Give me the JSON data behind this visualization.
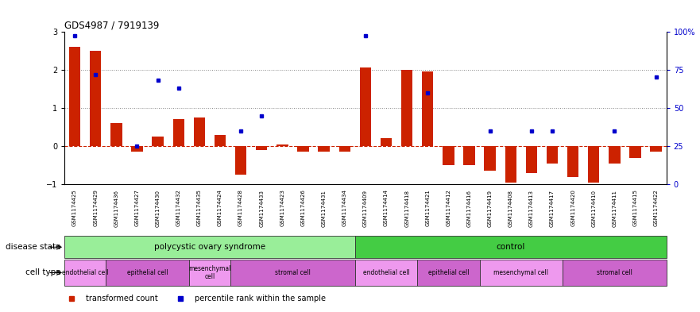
{
  "title": "GDS4987 / 7919139",
  "samples": [
    "GSM1174425",
    "GSM1174429",
    "GSM1174436",
    "GSM1174427",
    "GSM1174430",
    "GSM1174432",
    "GSM1174435",
    "GSM1174424",
    "GSM1174428",
    "GSM1174433",
    "GSM1174423",
    "GSM1174426",
    "GSM1174431",
    "GSM1174434",
    "GSM1174409",
    "GSM1174414",
    "GSM1174418",
    "GSM1174421",
    "GSM1174412",
    "GSM1174416",
    "GSM1174419",
    "GSM1174408",
    "GSM1174413",
    "GSM1174417",
    "GSM1174420",
    "GSM1174410",
    "GSM1174411",
    "GSM1174415",
    "GSM1174422"
  ],
  "transformed_count": [
    2.6,
    2.5,
    0.6,
    -0.15,
    0.25,
    0.7,
    0.75,
    0.3,
    -0.75,
    -0.1,
    0.05,
    -0.15,
    -0.15,
    -0.15,
    2.05,
    0.2,
    2.0,
    1.95,
    -0.5,
    -0.5,
    -0.65,
    -0.95,
    -0.7,
    -0.45,
    -0.8,
    -0.95,
    -0.45,
    -0.3,
    -0.15
  ],
  "percentile_rank": [
    97,
    72,
    null,
    25,
    68,
    63,
    null,
    null,
    35,
    45,
    null,
    null,
    null,
    null,
    97,
    null,
    null,
    60,
    null,
    null,
    35,
    null,
    35,
    35,
    null,
    null,
    35,
    null,
    70
  ],
  "ylim_left": [
    -1,
    3
  ],
  "ylim_right": [
    0,
    100
  ],
  "yticks_left": [
    -1,
    0,
    1,
    2,
    3
  ],
  "yticks_right": [
    0,
    25,
    50,
    75,
    100
  ],
  "bar_color": "#cc2200",
  "dot_color": "#0000cc",
  "hline_color": "#cc2200",
  "gridline_color": "#888888",
  "disease_state_bar": [
    {
      "label": "polycystic ovary syndrome",
      "start": 0,
      "end": 14,
      "color": "#99ee99"
    },
    {
      "label": "control",
      "start": 14,
      "end": 29,
      "color": "#44cc44"
    }
  ],
  "cell_type_bar": [
    {
      "label": "endothelial cell",
      "start": 0,
      "end": 2,
      "color": "#ee99ee"
    },
    {
      "label": "epithelial cell",
      "start": 2,
      "end": 6,
      "color": "#cc66cc"
    },
    {
      "label": "mesenchymal\ncell",
      "start": 6,
      "end": 8,
      "color": "#ee99ee"
    },
    {
      "label": "stromal cell",
      "start": 8,
      "end": 14,
      "color": "#cc66cc"
    },
    {
      "label": "endothelial cell",
      "start": 14,
      "end": 17,
      "color": "#ee99ee"
    },
    {
      "label": "epithelial cell",
      "start": 17,
      "end": 20,
      "color": "#cc66cc"
    },
    {
      "label": "mesenchymal cell",
      "start": 20,
      "end": 24,
      "color": "#ee99ee"
    },
    {
      "label": "stromal cell",
      "start": 24,
      "end": 29,
      "color": "#cc66cc"
    }
  ],
  "legend_items": [
    {
      "color": "#cc2200",
      "label": "transformed count",
      "marker": "s"
    },
    {
      "color": "#0000cc",
      "label": "percentile rank within the sample",
      "marker": "s"
    }
  ],
  "left_label_ds": "disease state",
  "left_label_ct": "cell type",
  "bg_color": "#ffffff",
  "chart_bg": "#ffffff",
  "tick_label_color": "#000000",
  "spine_color": "#000000"
}
